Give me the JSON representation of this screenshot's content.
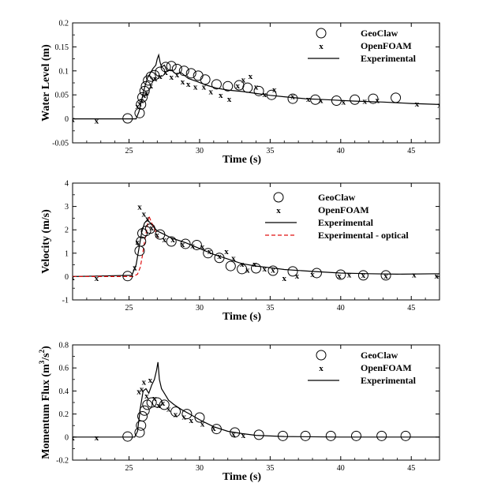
{
  "chart_data": [
    {
      "type": "line",
      "xlabel": "Time (s)",
      "ylabel": "Water Level (m)",
      "xlim": [
        21,
        47
      ],
      "ylim": [
        -0.05,
        0.2
      ],
      "yticks": [
        -0.05,
        0,
        0.05,
        0.1,
        0.15,
        0.2
      ],
      "ytick_labels": [
        "-0.05",
        "0",
        "0.05",
        "0.1",
        "0.15",
        "0.2"
      ],
      "xticks": [
        25,
        30,
        35,
        40,
        45
      ],
      "xtick_labels": [
        "25",
        "30",
        "35",
        "40",
        "45"
      ],
      "legend_position": "top-right",
      "grid": false,
      "series": [
        {
          "name": "GeoClaw",
          "marker": "circle",
          "x": [
            24.9,
            25.75,
            25.85,
            25.95,
            26.1,
            26.2,
            26.35,
            26.55,
            26.8,
            27.2,
            27.6,
            28.0,
            28.4,
            28.9,
            29.4,
            29.9,
            30.4,
            31.2,
            32.0,
            32.8,
            33.4,
            34.2,
            35.1,
            36.6,
            38.2,
            39.7,
            41.0,
            42.3,
            43.9
          ],
          "y": [
            0.001,
            0.012,
            0.03,
            0.045,
            0.058,
            0.068,
            0.08,
            0.088,
            0.091,
            0.098,
            0.108,
            0.11,
            0.104,
            0.1,
            0.095,
            0.09,
            0.082,
            0.072,
            0.068,
            0.07,
            0.065,
            0.058,
            0.05,
            0.042,
            0.04,
            0.038,
            0.04,
            0.042,
            0.044
          ]
        },
        {
          "name": "OpenFOAM",
          "marker": "x",
          "x": [
            21.0,
            22.7,
            25.6,
            25.75,
            25.9,
            26.05,
            26.25,
            26.55,
            26.85,
            27.2,
            27.6,
            28.0,
            28.4,
            28.8,
            29.2,
            29.7,
            30.3,
            30.8,
            31.5,
            32.1,
            32.7,
            33.1,
            33.6,
            34.0,
            34.6,
            35.3,
            36.6,
            37.7,
            38.6,
            40.2,
            41.7,
            42.6,
            45.4,
            47.0
          ],
          "y": [
            0.0,
            -0.003,
            0.027,
            0.033,
            0.04,
            0.05,
            0.055,
            0.07,
            0.085,
            0.09,
            0.098,
            0.088,
            0.093,
            0.078,
            0.073,
            0.068,
            0.068,
            0.058,
            0.05,
            0.042,
            0.07,
            0.082,
            0.09,
            0.068,
            0.052,
            0.062,
            0.048,
            0.042,
            0.04,
            0.036,
            0.038,
            0.04,
            0.032,
            0.03
          ]
        },
        {
          "name": "Experimental",
          "marker": "line",
          "x": [
            21,
            25.5,
            25.7,
            25.9,
            26.1,
            26.3,
            26.5,
            26.7,
            26.9,
            27.0,
            27.1,
            27.2,
            27.3,
            27.5,
            27.7,
            28.0,
            28.3,
            28.7,
            29.2,
            29.8,
            30.5,
            31.2,
            32.0,
            33.0,
            34.0,
            35.0,
            36.0,
            37.5,
            39.0,
            41.0,
            43.0,
            45.0,
            47.0
          ],
          "y": [
            0.0,
            0.0,
            0.015,
            0.04,
            0.065,
            0.085,
            0.095,
            0.105,
            0.112,
            0.125,
            0.133,
            0.118,
            0.108,
            0.112,
            0.1,
            0.102,
            0.094,
            0.096,
            0.084,
            0.078,
            0.07,
            0.064,
            0.06,
            0.057,
            0.053,
            0.049,
            0.046,
            0.042,
            0.04,
            0.037,
            0.035,
            0.032,
            0.03
          ]
        }
      ]
    },
    {
      "type": "line",
      "xlabel": "Time (s)",
      "ylabel": "Velocity (m/s)",
      "xlim": [
        21,
        47
      ],
      "ylim": [
        -1,
        4
      ],
      "yticks": [
        -1,
        0,
        1,
        2,
        3,
        4
      ],
      "ytick_labels": [
        "-1",
        "0",
        "1",
        "2",
        "3",
        "4"
      ],
      "xticks": [
        25,
        30,
        35,
        40,
        45
      ],
      "xtick_labels": [
        "25",
        "30",
        "35",
        "40",
        "45"
      ],
      "legend_position": "top-right",
      "grid": false,
      "series": [
        {
          "name": "GeoClaw",
          "marker": "circle",
          "x": [
            24.9,
            25.75,
            25.85,
            25.95,
            26.2,
            26.5,
            27.2,
            28.0,
            29.0,
            29.8,
            30.6,
            31.4,
            32.2,
            33.0,
            34.0,
            35.2,
            36.6,
            38.3,
            40.0,
            41.6,
            43.2
          ],
          "y": [
            0.02,
            1.1,
            1.5,
            1.85,
            1.95,
            2.05,
            1.8,
            1.5,
            1.4,
            1.35,
            1.0,
            0.8,
            0.45,
            0.32,
            0.35,
            0.25,
            0.22,
            0.15,
            0.08,
            0.05,
            0.05
          ]
        },
        {
          "name": "OpenFOAM",
          "marker": "x",
          "x": [
            21.0,
            22.7,
            25.4,
            25.6,
            25.75,
            26.05,
            26.3,
            26.6,
            27.0,
            27.5,
            28.1,
            28.8,
            29.5,
            30.2,
            30.7,
            31.4,
            31.9,
            32.4,
            33.0,
            33.4,
            33.9,
            34.6,
            35.2,
            36.0,
            36.9,
            38.0,
            39.9,
            40.6,
            41.6,
            43.2,
            45.2,
            46.8
          ],
          "y": [
            -0.02,
            -0.05,
            0.4,
            1.5,
            3.0,
            2.7,
            2.5,
            2.1,
            1.8,
            1.6,
            1.6,
            1.4,
            1.35,
            1.3,
            1.1,
            0.9,
            1.1,
            0.8,
            0.55,
            0.3,
            0.55,
            0.35,
            0.3,
            -0.05,
            0.05,
            0.12,
            0.05,
            0.1,
            0.08,
            0.05,
            0.1,
            0.05
          ]
        },
        {
          "name": "Experimental",
          "marker": "line",
          "x": [
            21,
            25.2,
            25.5,
            25.7,
            25.9,
            26.1,
            26.3,
            26.5,
            26.7,
            27.0,
            27.5,
            28.0,
            29.0,
            30.0,
            31.0,
            32.0,
            33.0,
            34.0,
            35.0,
            36.0,
            38.0,
            40.0,
            42.0,
            44.0,
            47.0
          ],
          "y": [
            0.0,
            0.05,
            0.5,
            1.2,
            1.9,
            2.3,
            2.4,
            2.3,
            2.15,
            1.95,
            1.8,
            1.65,
            1.45,
            1.2,
            0.95,
            0.75,
            0.55,
            0.45,
            0.38,
            0.3,
            0.22,
            0.15,
            0.12,
            0.1,
            0.12
          ]
        },
        {
          "name": "Experimental - optical",
          "marker": "dashed",
          "x": [
            21,
            25.3,
            25.6,
            25.8,
            25.95,
            26.1,
            26.25,
            26.4,
            26.6,
            26.9,
            27.1
          ],
          "y": [
            0.0,
            0.0,
            0.1,
            0.4,
            0.9,
            1.5,
            2.0,
            2.6,
            2.3,
            1.9,
            1.6
          ]
        }
      ]
    },
    {
      "type": "line",
      "xlabel": "Time (s)",
      "ylabel": "Momentum Flux (m",
      "ylabel_sup": "3",
      "ylabel_mid": "/s",
      "ylabel_sup2": "2",
      "ylabel_end": ")",
      "xlim": [
        21,
        47
      ],
      "ylim": [
        -0.2,
        0.8
      ],
      "yticks": [
        -0.2,
        0,
        0.2,
        0.4,
        0.6,
        0.8
      ],
      "ytick_labels": [
        "-0.2",
        "0",
        "0.2",
        "0.4",
        "0.6",
        "0.8"
      ],
      "xticks": [
        25,
        30,
        35,
        40,
        45
      ],
      "xtick_labels": [
        "25",
        "30",
        "35",
        "40",
        "45"
      ],
      "legend_position": "top-right",
      "grid": false,
      "series": [
        {
          "name": "GeoClaw",
          "marker": "circle",
          "x": [
            24.9,
            25.75,
            25.85,
            25.95,
            26.1,
            26.3,
            26.6,
            27.0,
            27.5,
            28.3,
            29.1,
            30.0,
            31.2,
            32.5,
            34.2,
            35.9,
            37.5,
            39.3,
            41.1,
            42.9,
            44.6
          ],
          "y": [
            0.005,
            0.04,
            0.1,
            0.18,
            0.23,
            0.28,
            0.3,
            0.3,
            0.28,
            0.22,
            0.2,
            0.17,
            0.07,
            0.04,
            0.02,
            0.01,
            0.01,
            0.01,
            0.01,
            0.01,
            0.01
          ]
        },
        {
          "name": "OpenFOAM",
          "marker": "x",
          "x": [
            21.0,
            22.7,
            25.7,
            25.9,
            26.05,
            26.25,
            26.5,
            26.8,
            27.1,
            27.4,
            27.8,
            28.3,
            28.9,
            29.4,
            30.2,
            31.0,
            32.4,
            33.1
          ],
          "y": [
            0.0,
            0.0,
            0.4,
            0.42,
            0.48,
            0.36,
            0.5,
            0.34,
            0.28,
            0.3,
            0.25,
            0.2,
            0.18,
            0.15,
            0.12,
            0.08,
            0.03,
            0.02
          ]
        },
        {
          "name": "Experimental",
          "marker": "line",
          "x": [
            21,
            25.4,
            25.6,
            25.8,
            26.0,
            26.2,
            26.4,
            26.6,
            26.8,
            26.95,
            27.05,
            27.15,
            27.3,
            27.5,
            27.8,
            28.2,
            28.7,
            29.3,
            30.0,
            31.0,
            32.0,
            33.0,
            34.0,
            36.0,
            40.0,
            47.0
          ],
          "y": [
            0.0,
            0.0,
            0.05,
            0.25,
            0.4,
            0.42,
            0.38,
            0.45,
            0.5,
            0.58,
            0.65,
            0.5,
            0.42,
            0.38,
            0.32,
            0.28,
            0.24,
            0.2,
            0.15,
            0.09,
            0.05,
            0.03,
            0.015,
            0.005,
            0.0,
            0.0
          ]
        }
      ]
    }
  ]
}
